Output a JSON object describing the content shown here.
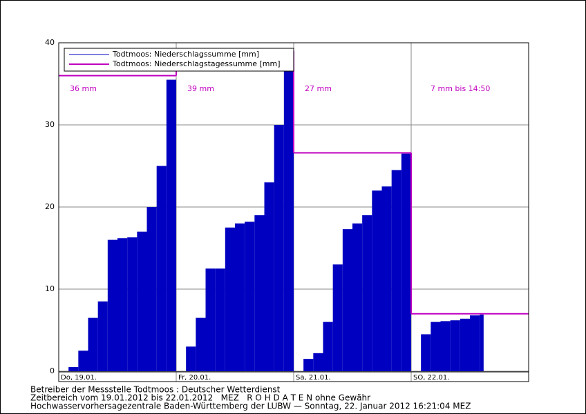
{
  "chart_data": {
    "type": "step-area",
    "legend": "upper left",
    "xlim": [
      0,
      96
    ],
    "xticks": [
      {
        "value": 0,
        "label": "Do, 19.01."
      },
      {
        "value": 24,
        "label": "Fr, 20.01."
      },
      {
        "value": 48,
        "label": "Sa, 21.01."
      },
      {
        "value": 72,
        "label": "SO, 22.01."
      }
    ],
    "ylim": [
      0,
      40
    ],
    "yticks": [
      0,
      10,
      20,
      30,
      40
    ],
    "grid": true,
    "series": [
      {
        "name": "Todtmoos: Niederschlagssumme [mm]",
        "color": "#0000c0",
        "x": [
          0,
          2,
          4,
          6,
          8,
          10,
          12,
          14,
          16,
          18,
          20,
          22,
          24,
          26,
          28,
          30,
          32,
          34,
          36,
          38,
          40,
          42,
          44,
          46,
          48,
          50,
          52,
          54,
          56,
          58,
          60,
          62,
          64,
          66,
          68,
          70,
          72,
          74,
          76,
          78,
          80,
          82,
          84,
          86,
          86.8
        ],
        "values": [
          0,
          0.5,
          2.5,
          6.5,
          8.5,
          16,
          16.2,
          16.3,
          17,
          20,
          25,
          35.5,
          0,
          3,
          6.5,
          12.5,
          12.5,
          17.5,
          18,
          18.2,
          19,
          23,
          30,
          37,
          0,
          1.5,
          2.2,
          6,
          13,
          17.3,
          18,
          19,
          22,
          22.5,
          24.5,
          26.5,
          0,
          4.5,
          6,
          6.1,
          6.2,
          6.4,
          6.8,
          6.9,
          6.9
        ]
      },
      {
        "name": "Todtmoos: Niederschlagstagessumme [mm]",
        "color": "#c000c0",
        "x": [
          0,
          24,
          48,
          72
        ],
        "values": [
          36,
          39,
          26.6,
          7
        ]
      }
    ],
    "annotations": [
      "36 mm",
      "39 mm",
      "27 mm",
      "7 mm bis 14:50"
    ],
    "footer": [
      "Betreiber der Messstelle Todtmoos : Deutscher Wetterdienst",
      "Zeitbereich vom 19.01.2012 bis 22.01.2012   MEZ   R O H D A T E N ohne Gewähr",
      "Hochwasservorhersagezentrale Baden-Württemberg der LUBW — Sonntag, 22. Januar 2012 16:21:04 MEZ"
    ]
  }
}
